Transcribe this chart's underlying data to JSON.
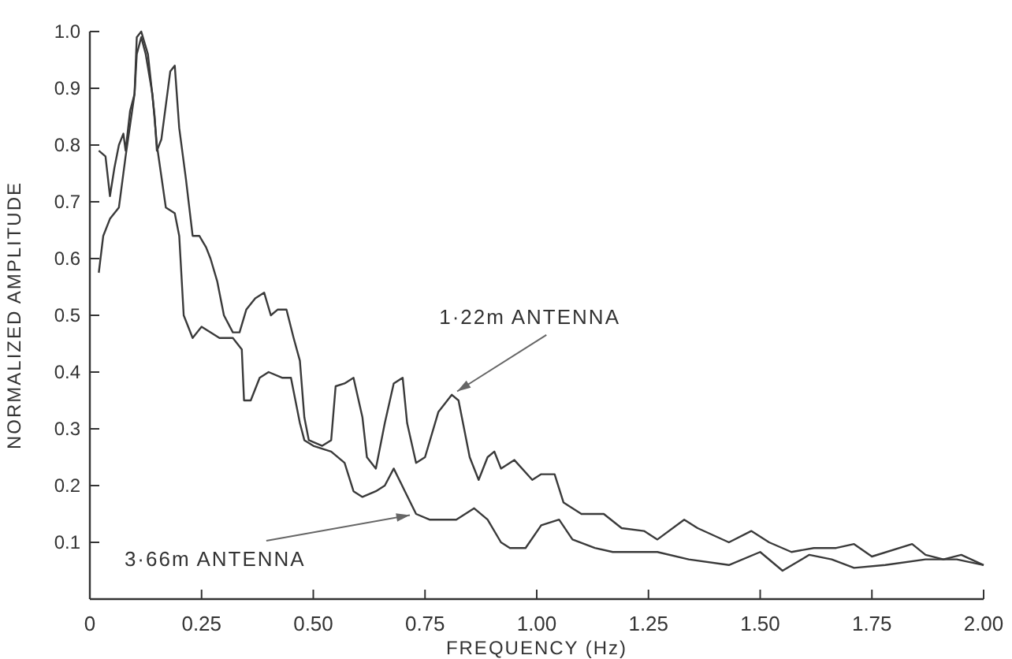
{
  "chart_data": {
    "type": "line",
    "xlabel": "FREQUENCY (Hz)",
    "ylabel": "NORMALIZED AMPLITUDE",
    "xlim": [
      0,
      2.0
    ],
    "ylim": [
      0,
      1.0
    ],
    "xticks": [
      0,
      0.25,
      {
        "value": 0.5,
        "label": "0.50"
      },
      0.75,
      {
        "value": 1.0,
        "label": "1.00"
      },
      1.25,
      {
        "value": 1.5,
        "label": "1.50"
      },
      1.75,
      {
        "value": 2.0,
        "label": "2.00"
      }
    ],
    "yticks": [
      0.1,
      0.2,
      0.3,
      0.4,
      0.5,
      0.6,
      0.7,
      0.8,
      0.9,
      {
        "value": 1.0,
        "label": "1.0"
      }
    ],
    "grid": false,
    "marker": "none",
    "line_style": "solid",
    "series": [
      {
        "color": "#3a3a3a",
        "x": [
          0.02,
          0.035,
          0.045,
          0.055,
          0.065,
          0.075,
          0.08,
          0.09,
          0.1,
          0.105,
          0.115,
          0.13,
          0.145,
          0.15,
          0.16,
          0.18,
          0.19,
          0.2,
          0.215,
          0.23,
          0.245,
          0.26,
          0.27,
          0.285,
          0.29,
          0.3,
          0.32,
          0.335,
          0.35,
          0.37,
          0.39,
          0.405,
          0.42,
          0.44,
          0.456,
          0.47,
          0.48,
          0.49,
          0.52,
          0.54,
          0.55,
          0.57,
          0.59,
          0.61,
          0.62,
          0.64,
          0.66,
          0.68,
          0.7,
          0.71,
          0.73,
          0.75,
          0.78,
          0.81,
          0.825,
          0.835,
          0.85,
          0.87,
          0.89,
          0.905,
          0.92,
          0.95,
          0.99,
          1.01,
          1.04,
          1.06,
          1.1,
          1.15,
          1.19,
          1.24,
          1.27,
          1.33,
          1.36,
          1.43,
          1.48,
          1.52,
          1.57,
          1.62,
          1.67,
          1.71,
          1.75,
          1.84,
          1.87,
          1.91,
          1.95,
          2.0
        ],
        "values": [
          0.79,
          0.78,
          0.71,
          0.76,
          0.8,
          0.82,
          0.79,
          0.86,
          0.89,
          0.99,
          1.0,
          0.96,
          0.85,
          0.79,
          0.81,
          0.93,
          0.94,
          0.83,
          0.74,
          0.64,
          0.64,
          0.62,
          0.6,
          0.56,
          0.54,
          0.5,
          0.47,
          0.47,
          0.51,
          0.53,
          0.54,
          0.5,
          0.51,
          0.51,
          0.46,
          0.42,
          0.32,
          0.28,
          0.27,
          0.28,
          0.375,
          0.38,
          0.39,
          0.32,
          0.25,
          0.23,
          0.31,
          0.38,
          0.39,
          0.31,
          0.24,
          0.25,
          0.33,
          0.36,
          0.35,
          0.31,
          0.25,
          0.21,
          0.25,
          0.26,
          0.23,
          0.245,
          0.21,
          0.22,
          0.22,
          0.17,
          0.15,
          0.15,
          0.125,
          0.12,
          0.105,
          0.14,
          0.125,
          0.1,
          0.12,
          0.1,
          0.083,
          0.09,
          0.09,
          0.097,
          0.075,
          0.097,
          0.078,
          0.07,
          0.078,
          0.06
        ]
      },
      {
        "color": "#3a3a3a",
        "x": [
          0.02,
          0.03,
          0.045,
          0.065,
          0.08,
          0.1,
          0.105,
          0.115,
          0.125,
          0.14,
          0.15,
          0.17,
          0.19,
          0.2,
          0.21,
          0.23,
          0.25,
          0.29,
          0.32,
          0.34,
          0.345,
          0.36,
          0.38,
          0.4,
          0.43,
          0.45,
          0.47,
          0.48,
          0.5,
          0.54,
          0.57,
          0.59,
          0.61,
          0.64,
          0.66,
          0.68,
          0.705,
          0.73,
          0.76,
          0.82,
          0.86,
          0.89,
          0.92,
          0.94,
          0.975,
          1.01,
          1.05,
          1.08,
          1.13,
          1.17,
          1.22,
          1.27,
          1.34,
          1.43,
          1.5,
          1.55,
          1.61,
          1.66,
          1.71,
          1.78,
          1.87,
          1.94,
          2.0
        ],
        "values": [
          0.575,
          0.64,
          0.67,
          0.69,
          0.78,
          0.89,
          0.96,
          0.99,
          0.96,
          0.89,
          0.8,
          0.69,
          0.68,
          0.64,
          0.5,
          0.46,
          0.48,
          0.46,
          0.46,
          0.44,
          0.35,
          0.35,
          0.39,
          0.4,
          0.39,
          0.39,
          0.31,
          0.28,
          0.27,
          0.26,
          0.24,
          0.19,
          0.18,
          0.19,
          0.2,
          0.23,
          0.19,
          0.15,
          0.14,
          0.14,
          0.16,
          0.14,
          0.1,
          0.09,
          0.09,
          0.13,
          0.14,
          0.105,
          0.09,
          0.083,
          0.083,
          0.083,
          0.07,
          0.06,
          0.083,
          0.05,
          0.078,
          0.07,
          0.055,
          0.06,
          0.07,
          0.07,
          0.06
        ]
      }
    ],
    "annotations": [
      {
        "text": "1·22m ANTENNA",
        "x": 0.81,
        "y": 0.36
      },
      {
        "text": "3·66m ANTENNA",
        "x": 0.73,
        "y": 0.15
      }
    ]
  }
}
